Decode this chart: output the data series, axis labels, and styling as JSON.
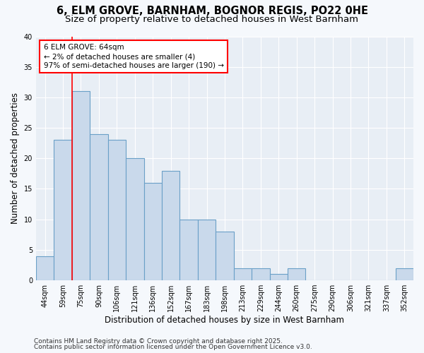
{
  "title1": "6, ELM GROVE, BARNHAM, BOGNOR REGIS, PO22 0HE",
  "title2": "Size of property relative to detached houses in West Barnham",
  "xlabel": "Distribution of detached houses by size in West Barnham",
  "ylabel": "Number of detached properties",
  "categories": [
    "44sqm",
    "59sqm",
    "75sqm",
    "90sqm",
    "106sqm",
    "121sqm",
    "136sqm",
    "152sqm",
    "167sqm",
    "183sqm",
    "198sqm",
    "213sqm",
    "229sqm",
    "244sqm",
    "260sqm",
    "275sqm",
    "290sqm",
    "306sqm",
    "321sqm",
    "337sqm",
    "352sqm"
  ],
  "values": [
    4,
    23,
    31,
    24,
    23,
    20,
    16,
    18,
    10,
    10,
    8,
    2,
    2,
    1,
    2,
    0,
    0,
    0,
    0,
    0,
    2
  ],
  "bar_color": "#c9d9eb",
  "bar_edge_color": "#6aa0c7",
  "red_line_index": 2,
  "annotation_text": "6 ELM GROVE: 64sqm\n← 2% of detached houses are smaller (4)\n97% of semi-detached houses are larger (190) →",
  "annotation_box_color": "white",
  "annotation_box_edge": "red",
  "ylim": [
    0,
    40
  ],
  "yticks": [
    0,
    5,
    10,
    15,
    20,
    25,
    30,
    35,
    40
  ],
  "footer1": "Contains HM Land Registry data © Crown copyright and database right 2025.",
  "footer2": "Contains public sector information licensed under the Open Government Licence v3.0.",
  "bg_color": "#f5f8fc",
  "plot_bg_color": "#e8eef5",
  "grid_color": "#ffffff",
  "title_fontsize": 10.5,
  "subtitle_fontsize": 9.5,
  "tick_fontsize": 7,
  "label_fontsize": 8.5,
  "footer_fontsize": 6.5
}
